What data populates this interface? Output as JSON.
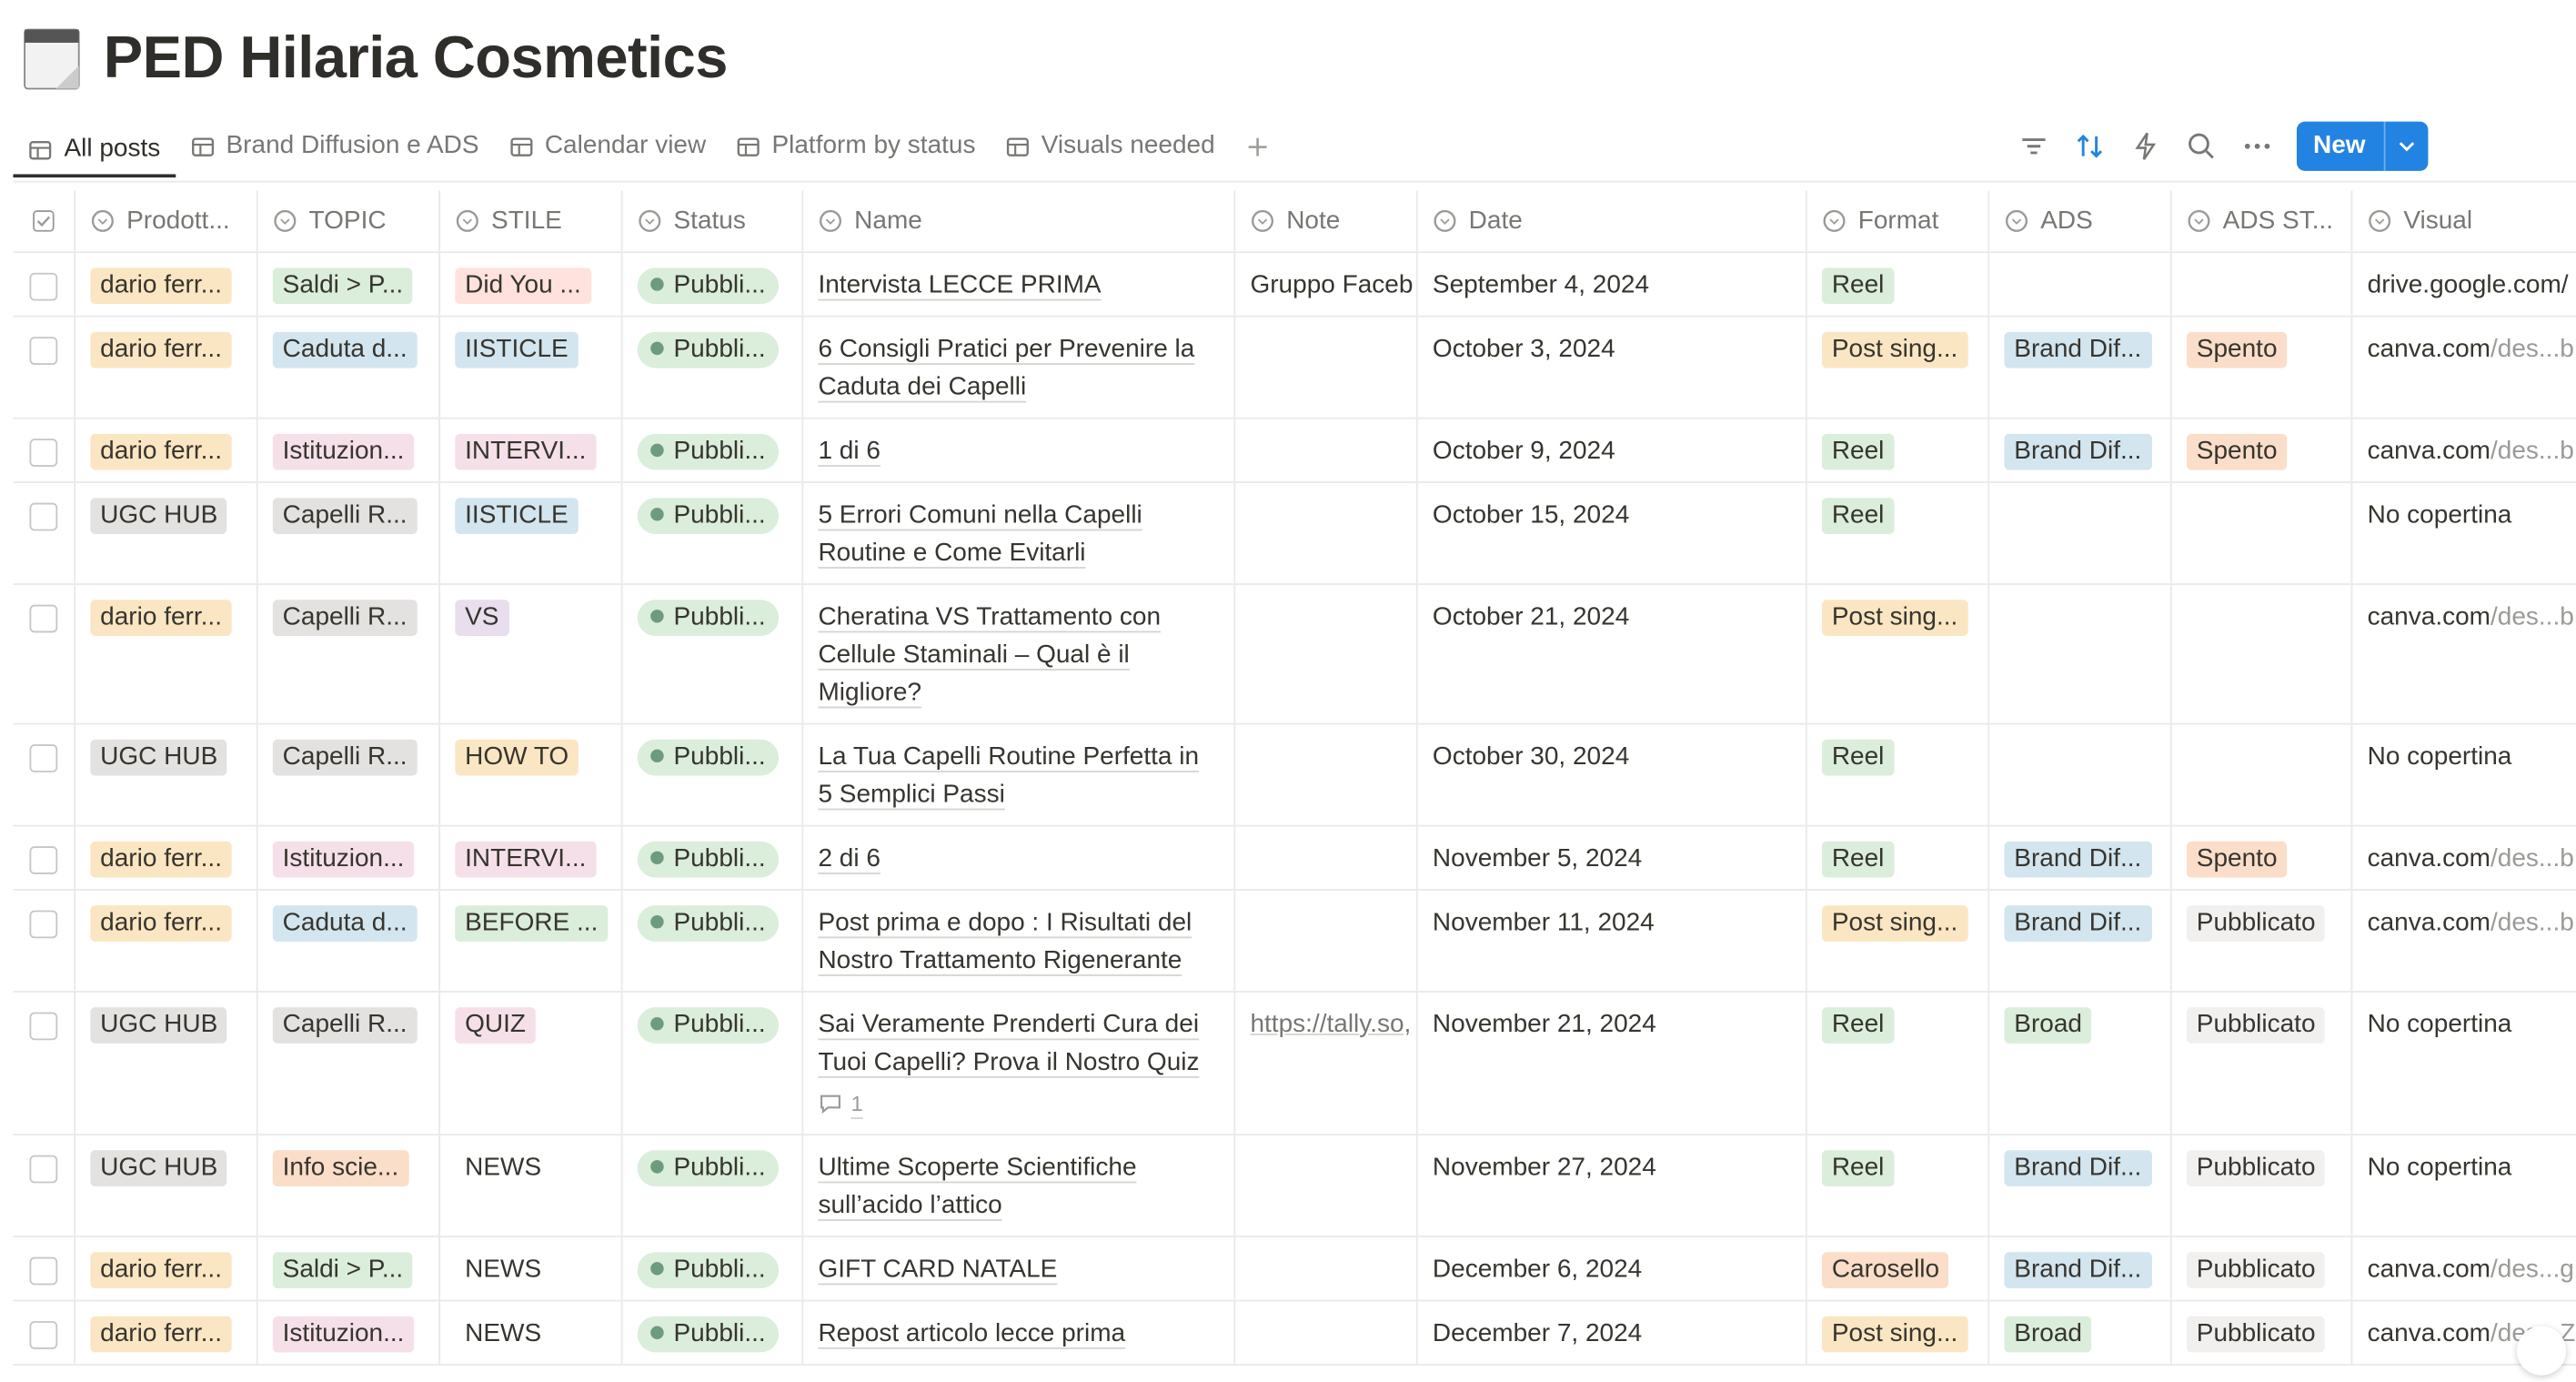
{
  "header": {
    "title": "PED Hilaria Cosmetics"
  },
  "tabs": [
    "All posts",
    "Brand Diffusion e ADS",
    "Calendar view",
    "Platform by status",
    "Visuals needed"
  ],
  "toolbar": {
    "new_button": "New"
  },
  "columns": [
    "Prodott...",
    "TOPIC",
    "STILE",
    "Status",
    "Name",
    "Note",
    "Date",
    "Format",
    "ADS",
    "ADS ST...",
    "Visual"
  ],
  "rows": [
    {
      "prodotto": {
        "text": "dario ferr...",
        "color": "#fbe6c3"
      },
      "topic": {
        "text": "Saldi > P...",
        "color": "#dbeddb"
      },
      "stile": {
        "text": "Did You ...",
        "color": "#ffe2dd"
      },
      "status": {
        "text": "Pubbli...",
        "color": "#dbeddb"
      },
      "name": [
        "Intervista LECCE PRIMA"
      ],
      "note": "Gruppo Faceb",
      "date": "September 4, 2024",
      "format": {
        "text": "Reel",
        "color": "#dbeddb"
      },
      "ads": null,
      "ads_status": null,
      "visual": {
        "text": "drive.google.com/"
      }
    },
    {
      "prodotto": {
        "text": "dario ferr...",
        "color": "#fbe6c3"
      },
      "topic": {
        "text": "Caduta d...",
        "color": "#d3e5ef"
      },
      "stile": {
        "text": "IISTICLE",
        "color": "#d3e5ef"
      },
      "status": {
        "text": "Pubbli...",
        "color": "#dbeddb"
      },
      "name": [
        "6 Consigli Pratici per Prevenire la",
        "Caduta dei Capelli"
      ],
      "note": null,
      "date": "October 3, 2024",
      "format": {
        "text": "Post sing...",
        "color": "#fbe6c3"
      },
      "ads": {
        "text": "Brand Dif...",
        "color": "#d3e5ef"
      },
      "ads_status": {
        "text": "Spento",
        "color": "#fadec9"
      },
      "visual": {
        "text": "canva.com",
        "muted": "/des...b"
      }
    },
    {
      "prodotto": {
        "text": "dario ferr...",
        "color": "#fbe6c3"
      },
      "topic": {
        "text": "Istituzion...",
        "color": "#f5e0e9"
      },
      "stile": {
        "text": "INTERVI...",
        "color": "#f5e0e9"
      },
      "status": {
        "text": "Pubbli...",
        "color": "#dbeddb"
      },
      "name": [
        "1 di 6"
      ],
      "note": null,
      "date": "October 9, 2024",
      "format": {
        "text": "Reel",
        "color": "#dbeddb"
      },
      "ads": {
        "text": "Brand Dif...",
        "color": "#d3e5ef"
      },
      "ads_status": {
        "text": "Spento",
        "color": "#fadec9"
      },
      "visual": {
        "text": "canva.com",
        "muted": "/des...b"
      }
    },
    {
      "prodotto": {
        "text": "UGC HUB",
        "color": "#e3e2e0"
      },
      "topic": {
        "text": "Capelli R...",
        "color": "#e3e2e0"
      },
      "stile": {
        "text": "IISTICLE",
        "color": "#d3e5ef"
      },
      "status": {
        "text": "Pubbli...",
        "color": "#dbeddb"
      },
      "name": [
        "5 Errori Comuni nella Capelli",
        "Routine e Come Evitarli"
      ],
      "note": null,
      "date": "October 15, 2024",
      "format": {
        "text": "Reel",
        "color": "#dbeddb"
      },
      "ads": null,
      "ads_status": null,
      "visual": {
        "text": "No copertina"
      }
    },
    {
      "prodotto": {
        "text": "dario ferr...",
        "color": "#fbe6c3"
      },
      "topic": {
        "text": "Capelli R...",
        "color": "#e3e2e0"
      },
      "stile": {
        "text": "VS",
        "color": "#e8deee"
      },
      "status": {
        "text": "Pubbli...",
        "color": "#dbeddb"
      },
      "name": [
        "Cheratina VS Trattamento con",
        "Cellule Staminali – Qual è il",
        "Migliore?"
      ],
      "note": null,
      "date": "October 21, 2024",
      "format": {
        "text": "Post sing...",
        "color": "#fbe6c3"
      },
      "ads": null,
      "ads_status": null,
      "visual": {
        "text": "canva.com",
        "muted": "/des...b"
      }
    },
    {
      "prodotto": {
        "text": "UGC HUB",
        "color": "#e3e2e0"
      },
      "topic": {
        "text": "Capelli R...",
        "color": "#e3e2e0"
      },
      "stile": {
        "text": "HOW TO",
        "color": "#fbe6c3"
      },
      "status": {
        "text": "Pubbli...",
        "color": "#dbeddb"
      },
      "name": [
        "La Tua Capelli Routine Perfetta in",
        "5 Semplici Passi"
      ],
      "note": null,
      "date": "October 30, 2024",
      "format": {
        "text": "Reel",
        "color": "#dbeddb"
      },
      "ads": null,
      "ads_status": null,
      "visual": {
        "text": "No copertina"
      }
    },
    {
      "prodotto": {
        "text": "dario ferr...",
        "color": "#fbe6c3"
      },
      "topic": {
        "text": "Istituzion...",
        "color": "#f5e0e9"
      },
      "stile": {
        "text": "INTERVI...",
        "color": "#f5e0e9"
      },
      "status": {
        "text": "Pubbli...",
        "color": "#dbeddb"
      },
      "name": [
        "2 di 6"
      ],
      "note": null,
      "date": "November 5, 2024",
      "format": {
        "text": "Reel",
        "color": "#dbeddb"
      },
      "ads": {
        "text": "Brand Dif...",
        "color": "#d3e5ef"
      },
      "ads_status": {
        "text": "Spento",
        "color": "#fadec9"
      },
      "visual": {
        "text": "canva.com",
        "muted": "/des...b"
      }
    },
    {
      "prodotto": {
        "text": "dario ferr...",
        "color": "#fbe6c3"
      },
      "topic": {
        "text": "Caduta d...",
        "color": "#d3e5ef"
      },
      "stile": {
        "text": "BEFORE ...",
        "color": "#dbeddb"
      },
      "status": {
        "text": "Pubbli...",
        "color": "#dbeddb"
      },
      "name": [
        "Post prima e dopo : I Risultati del",
        "Nostro Trattamento Rigenerante"
      ],
      "note": null,
      "date": "November 11, 2024",
      "format": {
        "text": "Post sing...",
        "color": "#fbe6c3"
      },
      "ads": {
        "text": "Brand Dif...",
        "color": "#d3e5ef"
      },
      "ads_status": {
        "text": "Pubblicato",
        "color": "#f1f0ef"
      },
      "visual": {
        "text": "canva.com",
        "muted": "/des...b"
      }
    },
    {
      "prodotto": {
        "text": "UGC HUB",
        "color": "#e3e2e0"
      },
      "topic": {
        "text": "Capelli R...",
        "color": "#e3e2e0"
      },
      "stile": {
        "text": "QUIZ",
        "color": "#f5e0e9"
      },
      "status": {
        "text": "Pubbli...",
        "color": "#dbeddb"
      },
      "name": [
        "Sai Veramente Prenderti Cura dei",
        "Tuoi Capelli? Prova il Nostro Quiz"
      ],
      "comments": 1,
      "note": "https://tally.so,",
      "date": "November 21, 2024",
      "format": {
        "text": "Reel",
        "color": "#dbeddb"
      },
      "ads": {
        "text": "Broad",
        "color": "#dbeddb"
      },
      "ads_status": {
        "text": "Pubblicato",
        "color": "#f1f0ef"
      },
      "visual": {
        "text": "No copertina"
      }
    },
    {
      "prodotto": {
        "text": "UGC HUB",
        "color": "#e3e2e0"
      },
      "topic": {
        "text": "Info scie...",
        "color": "#fadec9"
      },
      "stile": {
        "text": "NEWS",
        "color": "transparent"
      },
      "status": {
        "text": "Pubbli...",
        "color": "#dbeddb"
      },
      "name": [
        "Ultime Scoperte Scientifiche",
        "sull’acido l’attico"
      ],
      "note": null,
      "date": "November 27, 2024",
      "format": {
        "text": "Reel",
        "color": "#dbeddb"
      },
      "ads": {
        "text": "Brand Dif...",
        "color": "#d3e5ef"
      },
      "ads_status": {
        "text": "Pubblicato",
        "color": "#f1f0ef"
      },
      "visual": {
        "text": "No copertina"
      }
    },
    {
      "prodotto": {
        "text": "dario ferr...",
        "color": "#fbe6c3"
      },
      "topic": {
        "text": "Saldi > P...",
        "color": "#dbeddb"
      },
      "stile": {
        "text": "NEWS",
        "color": "transparent"
      },
      "status": {
        "text": "Pubbli...",
        "color": "#dbeddb"
      },
      "name": [
        "GIFT CARD NATALE"
      ],
      "note": null,
      "date": "December 6, 2024",
      "format": {
        "text": "Carosello",
        "color": "#fadec9"
      },
      "ads": {
        "text": "Brand Dif...",
        "color": "#d3e5ef"
      },
      "ads_status": {
        "text": "Pubblicato",
        "color": "#f1f0ef"
      },
      "visual": {
        "text": "canva.com",
        "muted": "/des...g"
      }
    },
    {
      "prodotto": {
        "text": "dario ferr...",
        "color": "#fbe6c3"
      },
      "topic": {
        "text": "Istituzion...",
        "color": "#f5e0e9"
      },
      "stile": {
        "text": "NEWS",
        "color": "transparent"
      },
      "status": {
        "text": "Pubbli...",
        "color": "#dbeddb"
      },
      "name": [
        "Repost articolo lecce prima"
      ],
      "note": null,
      "date": "December 7, 2024",
      "format": {
        "text": "Post sing...",
        "color": "#fbe6c3"
      },
      "ads": {
        "text": "Broad",
        "color": "#dbeddb"
      },
      "ads_status": {
        "text": "Pubblicato",
        "color": "#f1f0ef"
      },
      "visual": {
        "text": "canva.com",
        "muted": "/des...Z"
      }
    }
  ]
}
